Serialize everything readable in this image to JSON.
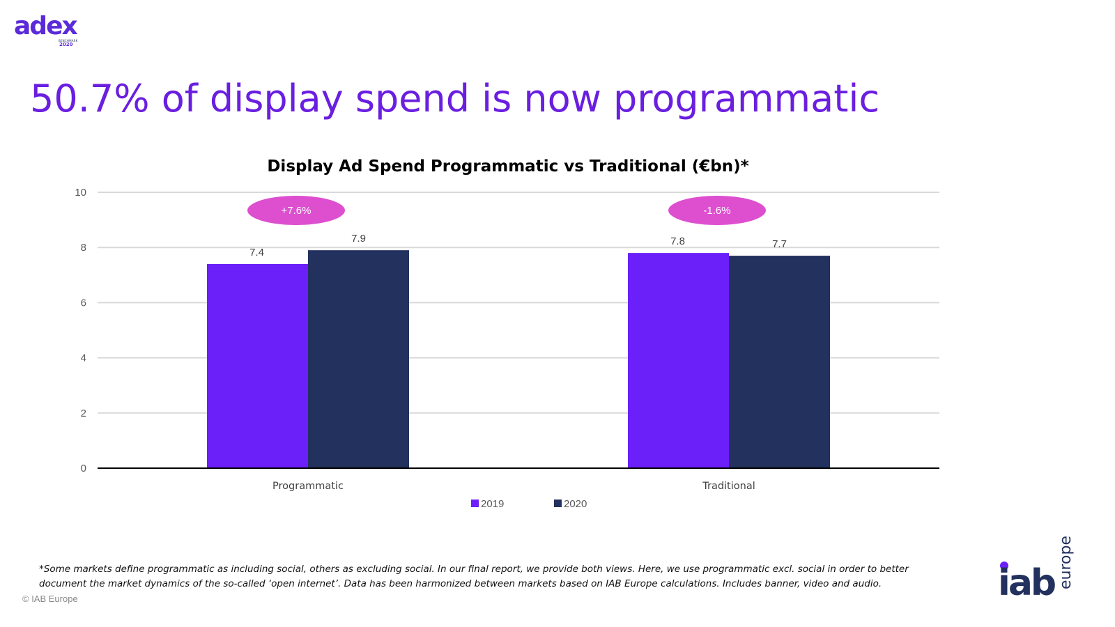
{
  "logo": {
    "main": "adex",
    "line1": "BENCHMARK",
    "line2": "2020"
  },
  "headline": "50.7% of display spend is now programmatic",
  "chart_data": {
    "type": "bar",
    "title": "Display Ad Spend Programmatic vs Traditional (€bn)*",
    "categories": [
      "Programmatic",
      "Traditional"
    ],
    "series": [
      {
        "name": "2019",
        "values": [
          7.4,
          7.8
        ],
        "color": "#6b1ff9"
      },
      {
        "name": "2020",
        "values": [
          7.9,
          7.7
        ],
        "color": "#23315e"
      }
    ],
    "data_labels": [
      [
        "7.4",
        "7.8"
      ],
      [
        "7.9",
        "7.7"
      ]
    ],
    "ylim": [
      0,
      10
    ],
    "yticks": [
      0,
      2,
      4,
      6,
      8,
      10
    ],
    "grid": true,
    "legend_position": "bottom",
    "annotations": [
      {
        "category": "Programmatic",
        "text": "+7.6%"
      },
      {
        "category": "Traditional",
        "text": "-1.6%"
      }
    ],
    "annotation_color": "#dd4fcf"
  },
  "footnote": "*Some markets define programmatic as including social, others as excluding social. In our final report, we provide both views. Here, we use programmatic excl. social in order to better document the market dynamics of the so-called ‘open internet’. Data has been harmonized between markets based on IAB Europe calculations. Includes banner, video and audio.",
  "copyright": "© IAB Europe",
  "iab_logo": {
    "main": "iab",
    "side": "europe",
    "dot_color": "#6b1ff9",
    "text_color": "#23315e"
  }
}
